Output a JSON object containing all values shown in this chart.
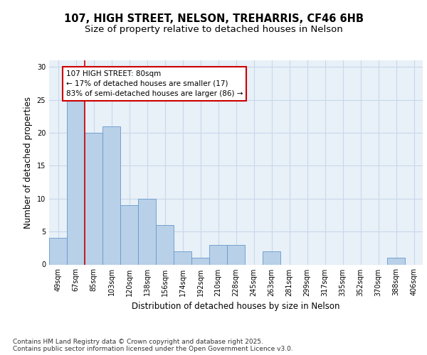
{
  "title_line1": "107, HIGH STREET, NELSON, TREHARRIS, CF46 6HB",
  "title_line2": "Size of property relative to detached houses in Nelson",
  "xlabel": "Distribution of detached houses by size in Nelson",
  "ylabel": "Number of detached properties",
  "categories": [
    "49sqm",
    "67sqm",
    "85sqm",
    "103sqm",
    "120sqm",
    "138sqm",
    "156sqm",
    "174sqm",
    "192sqm",
    "210sqm",
    "228sqm",
    "245sqm",
    "263sqm",
    "281sqm",
    "299sqm",
    "317sqm",
    "335sqm",
    "352sqm",
    "370sqm",
    "388sqm",
    "406sqm"
  ],
  "values": [
    4,
    25,
    20,
    21,
    9,
    10,
    6,
    2,
    1,
    3,
    3,
    0,
    2,
    0,
    0,
    0,
    0,
    0,
    0,
    1,
    0
  ],
  "bar_color": "#b8d0e8",
  "bar_edge_color": "#6699cc",
  "grid_color": "#c8d8ea",
  "background_color": "#e8f0f8",
  "annotation_line1": "107 HIGH STREET: 80sqm",
  "annotation_line2": "← 17% of detached houses are smaller (17)",
  "annotation_line3": "83% of semi-detached houses are larger (86) →",
  "annotation_box_color": "#cc0000",
  "red_line_x": 1.5,
  "ylim": [
    0,
    31
  ],
  "yticks": [
    0,
    5,
    10,
    15,
    20,
    25,
    30
  ],
  "footer_text": "Contains HM Land Registry data © Crown copyright and database right 2025.\nContains public sector information licensed under the Open Government Licence v3.0.",
  "title_fontsize": 10.5,
  "subtitle_fontsize": 9.5,
  "axis_label_fontsize": 8.5,
  "tick_fontsize": 7,
  "annotation_fontsize": 7.5,
  "footer_fontsize": 6.5
}
